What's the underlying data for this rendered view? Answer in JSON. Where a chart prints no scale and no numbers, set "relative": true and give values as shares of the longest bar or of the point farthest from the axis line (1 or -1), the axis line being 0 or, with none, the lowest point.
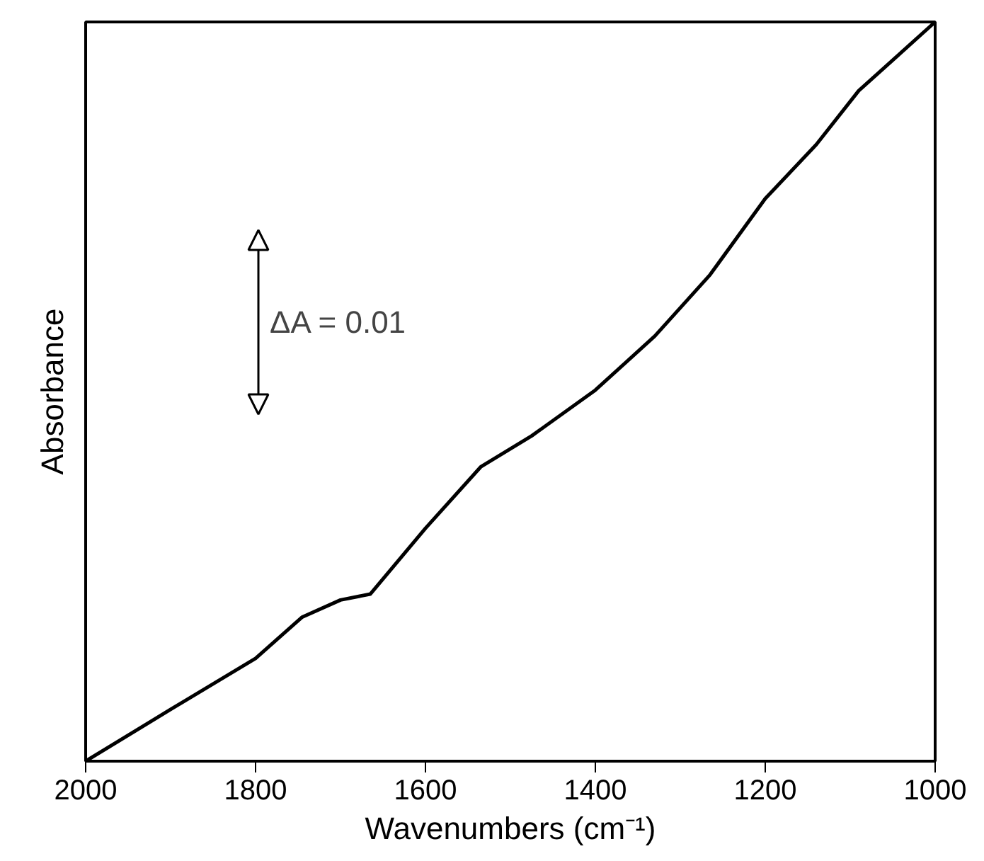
{
  "chart_data": {
    "type": "line",
    "relative": true,
    "xlabel": "Wavenumbers (cm⁻¹)",
    "ylabel": "Absorbance",
    "annotations": [
      "ΔA = 0.01"
    ],
    "xlim": [
      2000,
      1000
    ],
    "xticks": [
      2000,
      1800,
      1600,
      1400,
      1200,
      1000
    ],
    "grid": false,
    "tick_labels": "x",
    "series": [
      {
        "color": "#000000",
        "x": [
          2000,
          1900,
          1800,
          1745,
          1700,
          1665,
          1600,
          1535,
          1475,
          1400,
          1330,
          1265,
          1200,
          1140,
          1090,
          1000
        ],
        "values": [
          0,
          0.07,
          0.139,
          0.195,
          0.218,
          0.226,
          0.315,
          0.398,
          0.44,
          0.502,
          0.575,
          0.658,
          0.761,
          0.834,
          0.907,
          1
        ]
      }
    ]
  }
}
